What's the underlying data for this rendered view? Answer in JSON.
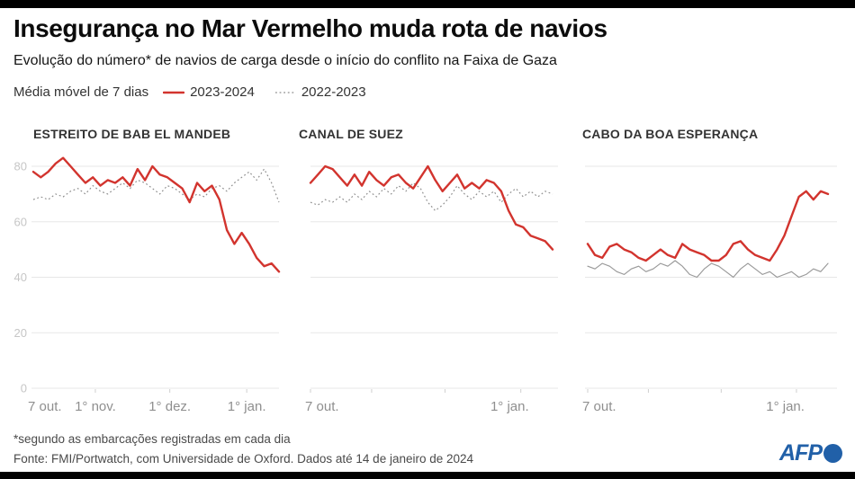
{
  "page": {
    "title": "Insegurança no Mar Vermelho muda rota de navios",
    "subtitle": "Evolução do número* de navios de carga desde o início do conflito na Faixa de Gaza",
    "footnote": "*segundo as embarcações registradas em cada dia",
    "source": "Fonte: FMI/Portwatch, com Universidade de Oxford. Dados até 14 de janeiro de 2024",
    "logo_text": "AFP"
  },
  "legend": {
    "label": "Média móvel de 7 dias",
    "series": [
      {
        "name": "2023-2024",
        "color": "#d2342e",
        "style": "solid"
      },
      {
        "name": "2022-2023",
        "color": "#8c8c8c",
        "style": "dotted"
      }
    ]
  },
  "colors": {
    "accent_red": "#d2342e",
    "gray_line": "#8c8c8c",
    "grid": "#e7e7e7",
    "tick": "#cfcfcf",
    "y_label": "#c6c6c6",
    "x_label": "#8f8f8f",
    "afp_blue": "#2160a8",
    "bar_black": "#000000"
  },
  "chart_data": [
    {
      "type": "line",
      "title": "ESTREITO DE BAB EL MANDEB",
      "ylim": [
        0,
        85
      ],
      "y_ticks": [
        0,
        20,
        40,
        60,
        80
      ],
      "show_y_labels": true,
      "grid": true,
      "x_max_day": 99,
      "x_ticks": [
        {
          "day": 0,
          "label": "7 out.",
          "align": "start",
          "tick": false
        },
        {
          "day": 25,
          "label": "1° nov.",
          "align": "middle",
          "tick": true
        },
        {
          "day": 55,
          "label": "1° dez.",
          "align": "middle",
          "tick": true
        },
        {
          "day": 86,
          "label": "1° jan.",
          "align": "middle",
          "tick": true
        }
      ],
      "series": [
        {
          "name": "2023-2024",
          "color": "#d2342e",
          "style": "solid",
          "values": [
            78,
            76,
            78,
            81,
            83,
            80,
            77,
            74,
            76,
            73,
            75,
            74,
            76,
            73,
            79,
            75,
            80,
            77,
            76,
            74,
            72,
            67,
            74,
            71,
            73,
            68,
            57,
            52,
            56,
            52,
            47,
            44,
            45,
            42
          ]
        },
        {
          "name": "2022-2023",
          "color": "#8c8c8c",
          "style": "dotted",
          "values": [
            68,
            69,
            68,
            70,
            69,
            71,
            72,
            70,
            73,
            71,
            70,
            72,
            74,
            72,
            75,
            74,
            72,
            70,
            73,
            72,
            70,
            68,
            70,
            69,
            72,
            73,
            71,
            74,
            76,
            78,
            75,
            79,
            74,
            67
          ]
        }
      ]
    },
    {
      "type": "line",
      "title": "CANAL DE SUEZ",
      "ylim": [
        0,
        85
      ],
      "y_ticks": [
        0,
        20,
        40,
        60,
        80
      ],
      "show_y_labels": false,
      "grid": true,
      "x_max_day": 99,
      "x_ticks": [
        {
          "day": 0,
          "label": "7 out.",
          "align": "start",
          "tick": true
        },
        {
          "day": 25,
          "label": "",
          "align": "middle",
          "tick": true
        },
        {
          "day": 55,
          "label": "",
          "align": "middle",
          "tick": true
        },
        {
          "day": 86,
          "label": "1° jan.",
          "align": "end",
          "tick": true
        }
      ],
      "series": [
        {
          "name": "2023-2024",
          "color": "#d2342e",
          "style": "solid",
          "values": [
            74,
            77,
            80,
            79,
            76,
            73,
            77,
            73,
            78,
            75,
            73,
            76,
            77,
            74,
            72,
            76,
            80,
            75,
            71,
            74,
            77,
            72,
            74,
            72,
            75,
            74,
            71,
            64,
            59,
            58,
            55,
            54,
            53,
            50
          ]
        },
        {
          "name": "2022-2023",
          "color": "#8c8c8c",
          "style": "dotted",
          "values": [
            67,
            66,
            68,
            67,
            69,
            67,
            70,
            68,
            71,
            69,
            72,
            70,
            73,
            71,
            74,
            72,
            67,
            64,
            66,
            69,
            73,
            70,
            68,
            71,
            69,
            71,
            67,
            70,
            72,
            69,
            71,
            69,
            71,
            70
          ]
        }
      ]
    },
    {
      "type": "line",
      "title": "CABO DA BOA ESPERANÇA",
      "ylim": [
        0,
        85
      ],
      "y_ticks": [
        0,
        20,
        40,
        60,
        80
      ],
      "show_y_labels": false,
      "grid": true,
      "x_max_day": 99,
      "x_ticks": [
        {
          "day": 0,
          "label": "7 out.",
          "align": "start",
          "tick": true
        },
        {
          "day": 25,
          "label": "",
          "align": "middle",
          "tick": true
        },
        {
          "day": 55,
          "label": "",
          "align": "middle",
          "tick": true
        },
        {
          "day": 86,
          "label": "1° jan.",
          "align": "end",
          "tick": true
        }
      ],
      "series": [
        {
          "name": "2023-2024",
          "color": "#d2342e",
          "style": "solid",
          "values": [
            52,
            48,
            47,
            51,
            52,
            50,
            49,
            47,
            46,
            48,
            50,
            48,
            47,
            52,
            50,
            49,
            48,
            46,
            46,
            48,
            52,
            53,
            50,
            48,
            47,
            46,
            50,
            55,
            62,
            69,
            71,
            68,
            71,
            70
          ]
        },
        {
          "name": "2022-2023",
          "color": "#999999",
          "style": "solid_thin",
          "values": [
            44,
            43,
            45,
            44,
            42,
            41,
            43,
            44,
            42,
            43,
            45,
            44,
            46,
            44,
            41,
            40,
            43,
            45,
            44,
            42,
            40,
            43,
            45,
            43,
            41,
            42,
            40,
            41,
            42,
            40,
            41,
            43,
            42,
            45
          ]
        }
      ]
    }
  ]
}
